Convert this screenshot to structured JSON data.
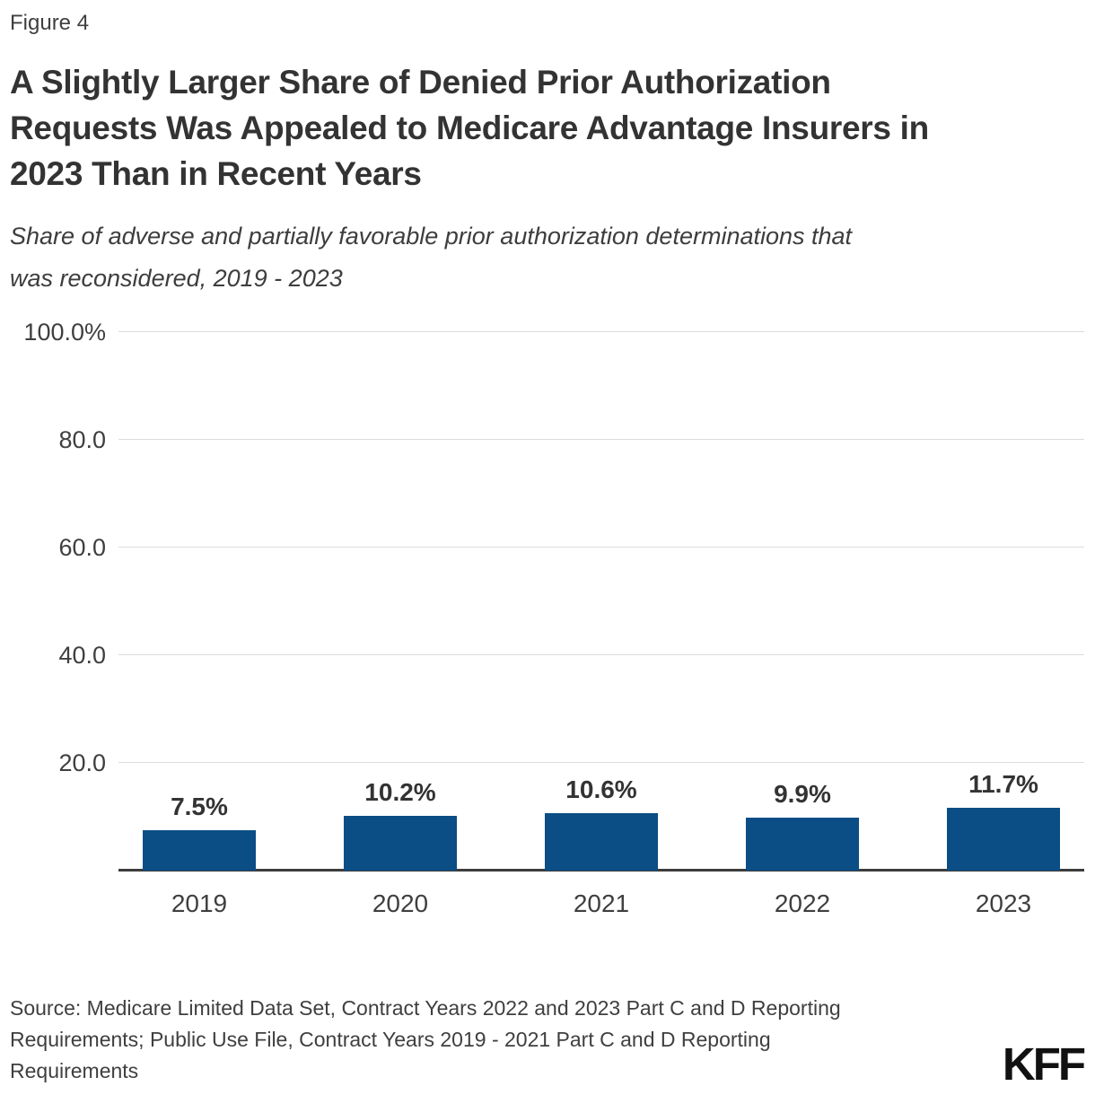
{
  "figure_label": "Figure 4",
  "title_lines": [
    "A Slightly Larger Share of Denied Prior Authorization",
    "Requests Was Appealed to Medicare Advantage Insurers in",
    "2023 Than in Recent Years"
  ],
  "subtitle_lines": [
    "Share of adverse and partially favorable prior authorization determinations that",
    "was reconsidered, 2019 - 2023"
  ],
  "source_lines": [
    "Source: Medicare Limited Data Set, Contract Years 2022 and 2023 Part C and D Reporting",
    "Requirements; Public Use File, Contract Years 2019 - 2021 Part C and D Reporting",
    "Requirements"
  ],
  "logo_text": "KFF",
  "colors": {
    "bar": "#0B4D85",
    "gridline": "#DCDCDC",
    "axis_line": "#3D3D3D",
    "title_text": "#333333",
    "body_text": "#3F3F3F",
    "logo": "#111111"
  },
  "chart_data": {
    "type": "bar",
    "title": "A Slightly Larger Share of Denied Prior Authorization Requests Was Appealed to Medicare Advantage Insurers in 2023 Than in Recent Years",
    "subtitle": "Share of adverse and partially favorable prior authorization determinations that was reconsidered, 2019 - 2023",
    "categories": [
      "2019",
      "2020",
      "2021",
      "2022",
      "2023"
    ],
    "values": [
      7.5,
      10.2,
      10.6,
      9.9,
      11.7
    ],
    "data_labels": [
      "7.5%",
      "10.2%",
      "10.6%",
      "9.9%",
      "11.7%"
    ],
    "xlabel": "",
    "ylabel": "",
    "ylim": [
      0,
      100
    ],
    "yticks": [
      {
        "value": 100,
        "label": "100.0%"
      },
      {
        "value": 80,
        "label": "80.0"
      },
      {
        "value": 60,
        "label": "60.0"
      },
      {
        "value": 40,
        "label": "40.0"
      },
      {
        "value": 20,
        "label": "20.0"
      }
    ],
    "grid": true,
    "legend": false,
    "bar_color": "#0B4D85"
  }
}
